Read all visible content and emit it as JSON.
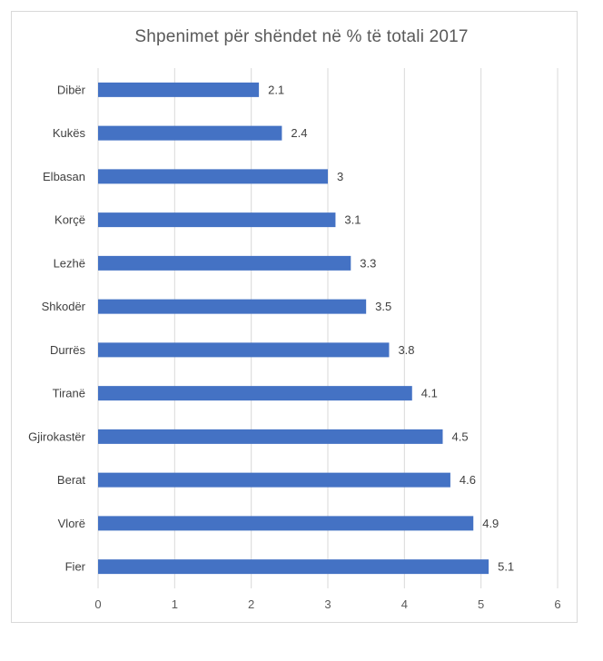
{
  "chart_data": {
    "type": "bar",
    "orientation": "horizontal",
    "title": "Shpenimet për shëndet në % të totali 2017",
    "categories": [
      "Dibër",
      "Kukës",
      "Elbasan",
      "Korçë",
      "Lezhë",
      "Shkodër",
      "Durrës",
      "Tiranë",
      "Gjirokastër",
      "Berat",
      "Vlorë",
      "Fier"
    ],
    "values": [
      2.1,
      2.4,
      3,
      3.1,
      3.3,
      3.5,
      3.8,
      4.1,
      4.5,
      4.6,
      4.9,
      5.1
    ],
    "data_labels": [
      "2.1",
      "2.4",
      "3",
      "3.1",
      "3.3",
      "3.5",
      "3.8",
      "4.1",
      "4.5",
      "4.6",
      "4.9",
      "5.1"
    ],
    "xlim": [
      0,
      6
    ],
    "xticks": [
      0,
      1,
      2,
      3,
      4,
      5,
      6
    ],
    "xtick_labels": [
      "0",
      "1",
      "2",
      "3",
      "4",
      "5",
      "6"
    ],
    "xlabel": "",
    "ylabel": "",
    "grid": "vertical",
    "legend": "none",
    "bar_color": "#4472c4",
    "grid_color": "#d9d9d9"
  }
}
